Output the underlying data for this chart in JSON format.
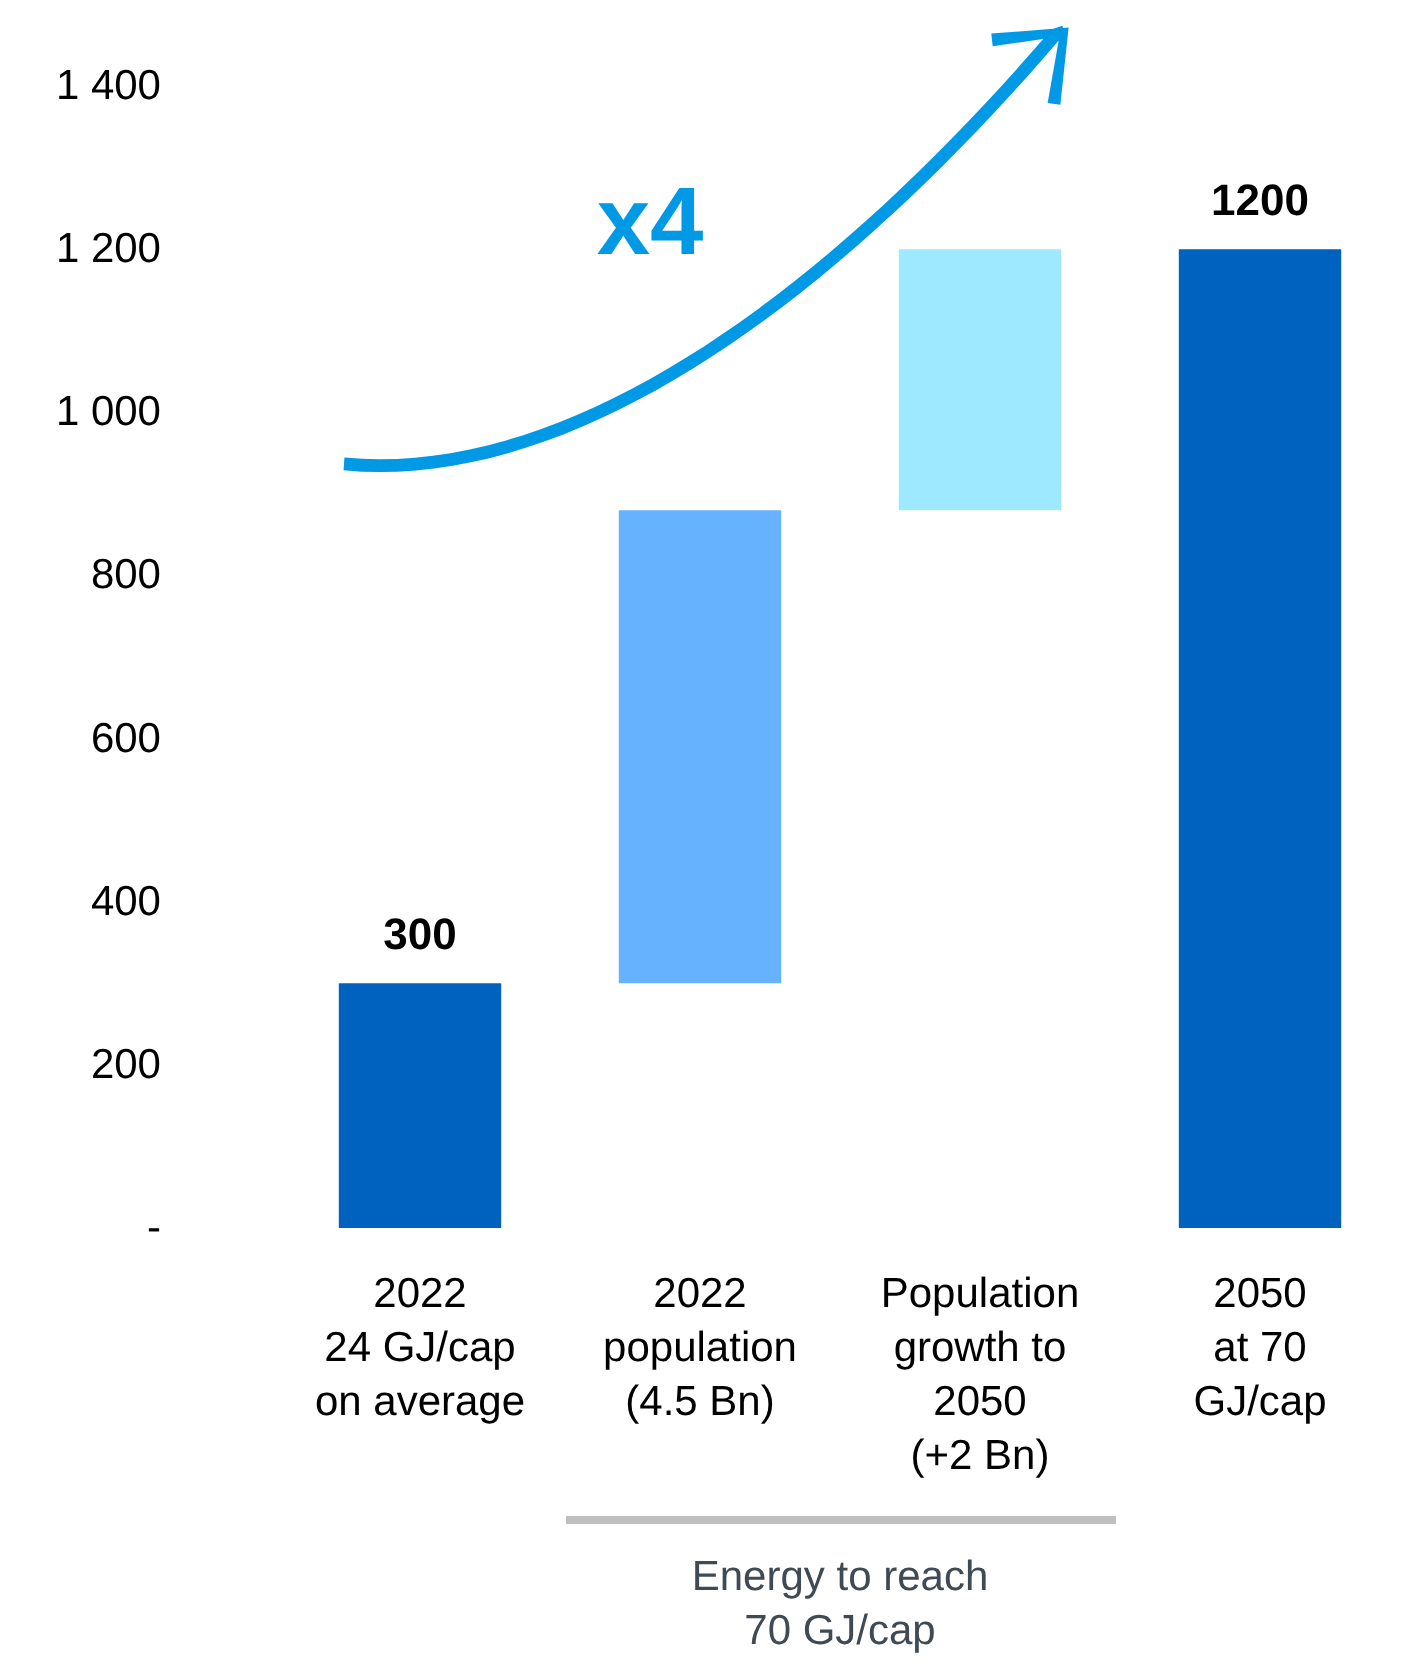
{
  "chart_data": {
    "type": "bar",
    "categories": [
      "2022\n24 GJ/cap\non average",
      "2022\npopulation\n(4.5 Bn)",
      "Population\ngrowth to\n2050\n(+2 Bn)",
      "2050\nat 70\nGJ/cap"
    ],
    "values": [
      300,
      580,
      320,
      1200
    ],
    "base": [
      0,
      300,
      880,
      0
    ],
    "colors": [
      "#0062bf",
      "#66b2ff",
      "#9ee9ff",
      "#0062bf"
    ],
    "value_labels": [
      "300",
      null,
      null,
      "1200"
    ],
    "ylim": [
      0,
      1400
    ],
    "yticks": [
      {
        "value": 0,
        "label": "-"
      },
      200,
      400,
      600,
      800,
      {
        "value": 1000,
        "label": "1 000"
      },
      {
        "value": 1200,
        "label": "1 200"
      },
      {
        "value": 1400,
        "label": "1 400"
      }
    ],
    "grid": false,
    "legend": false,
    "annotations": [
      "x4",
      "Energy to reach\n70 GJ/cap"
    ]
  }
}
